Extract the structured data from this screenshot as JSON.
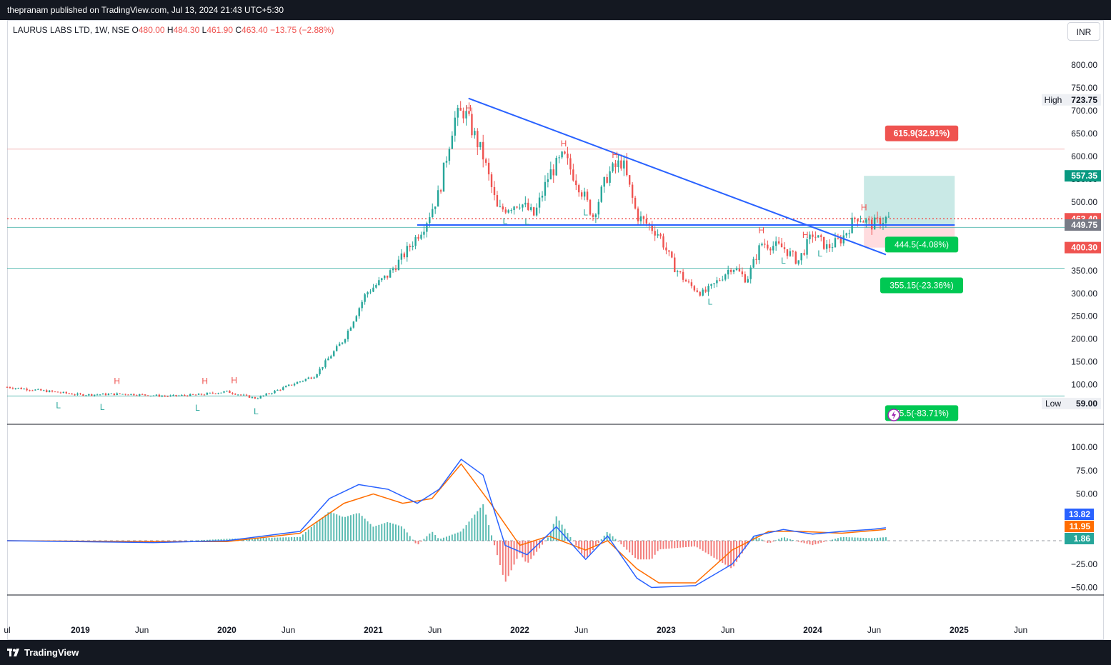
{
  "header": {
    "attribution": "thepranam published on TradingView.com, Jul 13, 2024 21:43 UTC+5:30"
  },
  "symbol": {
    "name": "LAURUS LABS LTD, 1W, NSE",
    "open_label": "O",
    "open": "480.00",
    "high_label": "H",
    "high": "484.30",
    "low_label": "L",
    "low": "461.90",
    "close_label": "C",
    "close": "463.40",
    "change": "−13.75 (−2.88%)"
  },
  "currency_button": "INR",
  "footer": {
    "brand": "TradingView"
  },
  "colors": {
    "up": "#26a69a",
    "down": "#ef5350",
    "trendline": "#2962ff",
    "macd": "#2962ff",
    "signal": "#ff6d00",
    "target_zone": "#b2dfdb",
    "stop_zone": "#ffcdd2"
  },
  "chart_data": [
    {
      "type": "line",
      "title": "",
      "ylim": [
        40,
        860
      ],
      "price_ticks": [
        "800.00",
        "750.00",
        "700.00",
        "650.00",
        "600.00",
        "550.00",
        "500.00",
        "450.00",
        "400.00",
        "350.00",
        "300.00",
        "250.00",
        "200.00",
        "150.00",
        "100.00"
      ],
      "time_labels": [
        "ul",
        "2019",
        "Jun",
        "2020",
        "Jun",
        "2021",
        "Jun",
        "2022",
        "Jun",
        "2023",
        "Jun",
        "2024",
        "Jun",
        "2025",
        "Jun"
      ],
      "price_path": [
        [
          2018.5,
          95
        ],
        [
          2018.8,
          85
        ],
        [
          2019.0,
          78
        ],
        [
          2019.3,
          80
        ],
        [
          2019.6,
          75
        ],
        [
          2019.8,
          78
        ],
        [
          2020.0,
          85
        ],
        [
          2020.2,
          70
        ],
        [
          2020.4,
          95
        ],
        [
          2020.6,
          120
        ],
        [
          2020.8,
          200
        ],
        [
          2020.95,
          300
        ],
        [
          2021.1,
          340
        ],
        [
          2021.2,
          380
        ],
        [
          2021.35,
          450
        ],
        [
          2021.45,
          520
        ],
        [
          2021.5,
          600
        ],
        [
          2021.55,
          680
        ],
        [
          2021.62,
          700
        ],
        [
          2021.75,
          600
        ],
        [
          2021.85,
          480
        ],
        [
          2022.0,
          500
        ],
        [
          2022.1,
          470
        ],
        [
          2022.2,
          560
        ],
        [
          2022.3,
          600
        ],
        [
          2022.4,
          540
        ],
        [
          2022.5,
          470
        ],
        [
          2022.6,
          560
        ],
        [
          2022.7,
          590
        ],
        [
          2022.8,
          470
        ],
        [
          2022.95,
          430
        ],
        [
          2023.05,
          360
        ],
        [
          2023.15,
          320
        ],
        [
          2023.25,
          300
        ],
        [
          2023.3,
          310
        ],
        [
          2023.45,
          360
        ],
        [
          2023.55,
          330
        ],
        [
          2023.65,
          410
        ],
        [
          2023.8,
          400
        ],
        [
          2023.9,
          370
        ],
        [
          2024.0,
          430
        ],
        [
          2024.1,
          400
        ],
        [
          2024.2,
          420
        ],
        [
          2024.3,
          470
        ],
        [
          2024.4,
          450
        ],
        [
          2024.5,
          463.4
        ]
      ],
      "annotations": {
        "highs": [
          [
            "H",
            2019.25
          ],
          [
            "H",
            2019.85
          ],
          [
            "H",
            2020.05
          ],
          [
            "H",
            2021.65
          ],
          [
            "H",
            2022.3
          ],
          [
            "H",
            2022.65
          ],
          [
            "H",
            2023.65
          ],
          [
            "H",
            2023.95
          ],
          [
            "H",
            2024.35
          ]
        ],
        "lows": [
          [
            "L",
            2018.85
          ],
          [
            "L",
            2019.15
          ],
          [
            "L",
            2019.8
          ],
          [
            "L",
            2020.2
          ],
          [
            "L",
            2021.9
          ],
          [
            "L",
            2022.05
          ],
          [
            "L",
            2022.45
          ],
          [
            "L",
            2023.3
          ],
          [
            "L",
            2023.8
          ],
          [
            "L",
            2024.05
          ]
        ]
      },
      "price_labels": {
        "high": {
          "text": "High",
          "value": "723.75",
          "price": 723.75
        },
        "target": {
          "value": "557.35",
          "price": 557.35
        },
        "last": {
          "value": "463.40",
          "price": 463.4
        },
        "support": {
          "value": "449.75",
          "price": 449.75
        },
        "stop": {
          "value": "400.30",
          "price": 400.3
        },
        "low": {
          "text": "Low",
          "value": "59.00",
          "price": 59
        }
      },
      "levels": [
        {
          "label": "615.9(32.91%)",
          "price": 615.9
        },
        {
          "label": "444.5(-4.08%)",
          "price": 444.5
        },
        {
          "label": "355.15(-23.36%)",
          "price": 355.15
        },
        {
          "label": "75.5(-83.71%)",
          "price": 75.5
        }
      ],
      "trendlines": {
        "descending": [
          [
            2021.65,
            727
          ],
          [
            2024.5,
            385
          ]
        ],
        "support": [
          [
            2021.3,
            449.75
          ],
          [
            2024.97,
            449.75
          ]
        ]
      },
      "position_zone": {
        "start": 2024.35,
        "end": 2024.97,
        "entry": 449.75,
        "target": 557.35,
        "stop": 400.3
      }
    },
    {
      "type": "line",
      "title": "",
      "ylim": [
        -55,
        110
      ],
      "ticks": [
        "100.00",
        "75.00",
        "50.00",
        "−25.00",
        "−50.00"
      ],
      "series": [
        {
          "values": [
            [
              2018.5,
              0
            ],
            [
              2019.5,
              -2
            ],
            [
              2020.0,
              0
            ],
            [
              2020.5,
              10
            ],
            [
              2020.7,
              45
            ],
            [
              2020.9,
              60
            ],
            [
              2021.1,
              55
            ],
            [
              2021.3,
              40
            ],
            [
              2021.45,
              55
            ],
            [
              2021.6,
              87
            ],
            [
              2021.75,
              70
            ],
            [
              2021.9,
              -5
            ],
            [
              2022.05,
              -15
            ],
            [
              2022.25,
              15
            ],
            [
              2022.45,
              -20
            ],
            [
              2022.6,
              5
            ],
            [
              2022.8,
              -40
            ],
            [
              2022.9,
              -50
            ],
            [
              2023.2,
              -48
            ],
            [
              2023.45,
              -25
            ],
            [
              2023.6,
              5
            ],
            [
              2023.8,
              12
            ],
            [
              2024.0,
              7
            ],
            [
              2024.2,
              10
            ],
            [
              2024.4,
              12
            ],
            [
              2024.5,
              13.82
            ]
          ]
        },
        {
          "values": [
            [
              2018.5,
              0
            ],
            [
              2019.5,
              -1
            ],
            [
              2020.0,
              -1
            ],
            [
              2020.5,
              8
            ],
            [
              2020.8,
              40
            ],
            [
              2021.0,
              50
            ],
            [
              2021.2,
              40
            ],
            [
              2021.4,
              45
            ],
            [
              2021.6,
              82
            ],
            [
              2021.8,
              40
            ],
            [
              2022.0,
              -5
            ],
            [
              2022.2,
              5
            ],
            [
              2022.45,
              -10
            ],
            [
              2022.6,
              0
            ],
            [
              2022.8,
              -30
            ],
            [
              2022.95,
              -45
            ],
            [
              2023.2,
              -45
            ],
            [
              2023.45,
              -10
            ],
            [
              2023.7,
              10
            ],
            [
              2023.9,
              10
            ],
            [
              2024.2,
              8
            ],
            [
              2024.5,
              11.95
            ]
          ]
        }
      ],
      "histogram_last": 1.86,
      "value_labels": [
        "13.82",
        "11.95",
        "1.86"
      ]
    }
  ]
}
